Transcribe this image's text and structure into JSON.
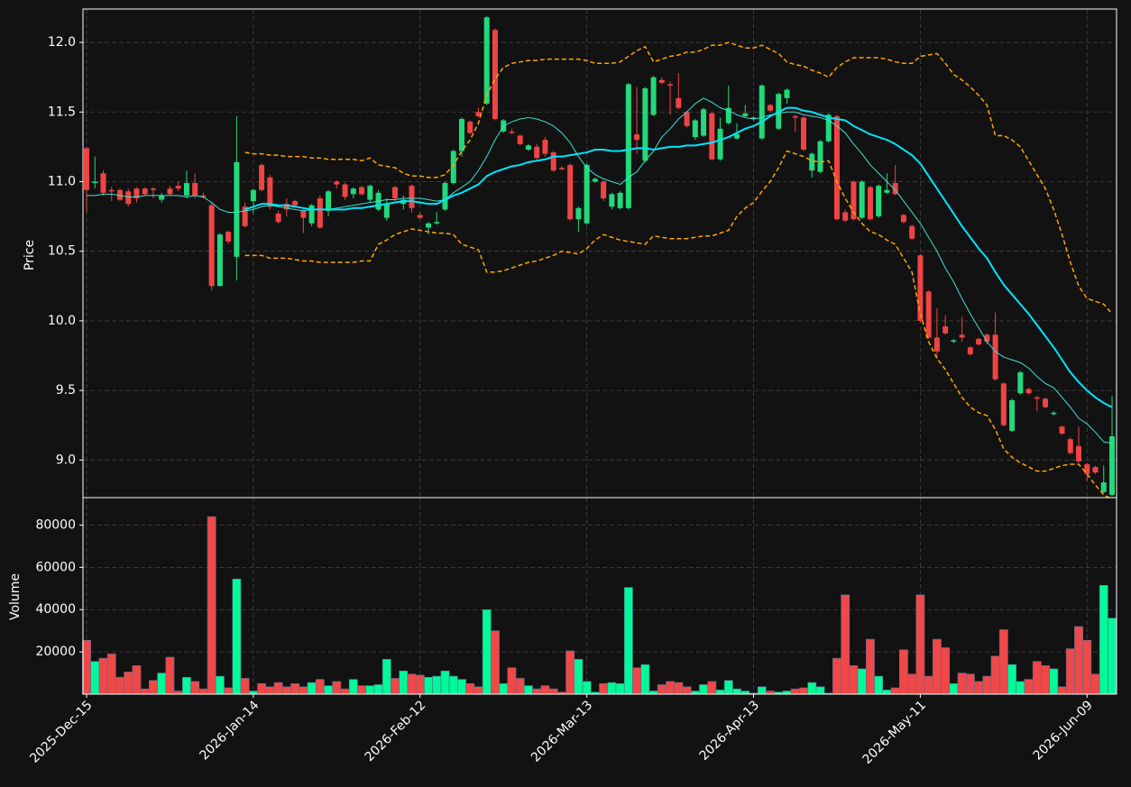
{
  "chart_data": {
    "type": "candlestick",
    "price_label": "Price",
    "volume_label": "Volume",
    "categories": [
      "2025-Dec-15",
      null,
      null,
      null,
      null,
      null,
      null,
      null,
      null,
      null,
      null,
      null,
      null,
      null,
      null,
      null,
      null,
      null,
      null,
      null,
      "2026-Jan-14",
      null,
      null,
      null,
      null,
      null,
      null,
      null,
      null,
      null,
      null,
      null,
      null,
      null,
      null,
      null,
      null,
      null,
      null,
      null,
      "2026-Feb-12",
      null,
      null,
      null,
      null,
      null,
      null,
      null,
      null,
      null,
      null,
      null,
      null,
      null,
      null,
      null,
      null,
      null,
      null,
      null,
      "2026-Mar-13",
      null,
      null,
      null,
      null,
      null,
      null,
      null,
      null,
      null,
      null,
      null,
      null,
      null,
      null,
      null,
      null,
      null,
      null,
      null,
      "2026-Apr-13",
      null,
      null,
      null,
      null,
      null,
      null,
      null,
      null,
      null,
      null,
      null,
      null,
      null,
      null,
      null,
      null,
      null,
      null,
      null,
      "2026-May-11",
      null,
      null,
      null,
      null,
      null,
      null,
      null,
      null,
      null,
      null,
      null,
      null,
      null,
      null,
      null,
      null,
      null,
      null,
      null,
      "2026-Jun-09",
      null,
      null,
      null
    ],
    "open": [
      11.24,
      10.99,
      11.06,
      10.94,
      10.94,
      10.93,
      10.95,
      10.95,
      10.95,
      10.87,
      10.95,
      10.97,
      10.9,
      10.99,
      10.9,
      10.83,
      10.25,
      10.64,
      10.46,
      10.82,
      10.86,
      11.12,
      11.03,
      10.77,
      10.84,
      10.86,
      10.79,
      10.7,
      10.88,
      10.79,
      11.0,
      10.98,
      10.91,
      10.96,
      10.87,
      10.8,
      10.74,
      10.96,
      10.84,
      10.97,
      10.76,
      10.67,
      10.7,
      10.8,
      10.99,
      11.22,
      11.43,
      11.5,
      11.56,
      12.09,
      11.36,
      11.36,
      11.33,
      11.23,
      11.25,
      11.3,
      11.21,
      11.1,
      11.12,
      10.73,
      10.7,
      11.0,
      11.0,
      10.82,
      10.81,
      10.81,
      11.34,
      11.15,
      11.48,
      11.73,
      11.7,
      11.6,
      11.5,
      11.32,
      11.33,
      11.49,
      11.16,
      11.42,
      11.31,
      11.47,
      11.45,
      11.31,
      11.55,
      11.38,
      11.6,
      11.47,
      11.46,
      11.08,
      11.07,
      11.29,
      11.47,
      10.78,
      11.0,
      10.74,
      10.96,
      10.75,
      10.92,
      10.99,
      10.76,
      10.68,
      10.47,
      10.21,
      9.88,
      9.96,
      9.85,
      9.9,
      9.81,
      9.87,
      9.9,
      9.9,
      9.55,
      9.21,
      9.48,
      9.51,
      9.45,
      9.44,
      9.33,
      9.24,
      9.15,
      9.1,
      8.97,
      8.95,
      8.77,
      8.75
    ],
    "high": [
      11.25,
      11.18,
      11.08,
      10.96,
      10.95,
      10.95,
      10.96,
      10.96,
      10.96,
      10.92,
      10.97,
      11.0,
      11.08,
      11.06,
      10.92,
      10.85,
      10.63,
      10.65,
      11.47,
      10.85,
      10.95,
      11.13,
      11.05,
      10.79,
      10.88,
      10.87,
      10.8,
      10.84,
      10.9,
      10.94,
      11.01,
      10.99,
      10.96,
      10.97,
      10.98,
      10.94,
      10.88,
      10.97,
      10.9,
      10.98,
      10.78,
      10.71,
      10.78,
      11.0,
      11.23,
      11.46,
      11.44,
      11.53,
      12.19,
      12.1,
      11.45,
      11.38,
      11.34,
      11.27,
      11.27,
      11.32,
      11.22,
      11.11,
      11.13,
      10.82,
      11.13,
      11.03,
      11.01,
      10.92,
      10.93,
      11.71,
      11.68,
      11.68,
      11.76,
      11.75,
      11.72,
      11.78,
      11.51,
      11.45,
      11.53,
      11.5,
      11.46,
      11.69,
      11.42,
      11.55,
      11.47,
      11.7,
      11.56,
      11.64,
      11.67,
      11.48,
      11.47,
      11.21,
      11.3,
      11.49,
      11.48,
      10.8,
      11.01,
      11.01,
      10.97,
      10.98,
      11.06,
      11.12,
      10.77,
      10.69,
      10.48,
      10.22,
      10.09,
      10.04,
      9.87,
      10.03,
      9.82,
      9.88,
      9.91,
      10.06,
      9.56,
      9.44,
      9.64,
      9.52,
      9.46,
      9.45,
      9.35,
      9.25,
      9.16,
      9.24,
      8.98,
      8.96,
      8.96,
      9.46
    ],
    "low": [
      10.78,
      10.95,
      10.9,
      10.86,
      10.86,
      10.82,
      10.85,
      10.9,
      10.88,
      10.85,
      10.9,
      10.93,
      10.88,
      10.88,
      10.88,
      10.22,
      10.25,
      10.55,
      10.29,
      10.67,
      10.77,
      10.93,
      10.8,
      10.7,
      10.75,
      10.82,
      10.63,
      10.68,
      10.66,
      10.75,
      10.95,
      10.87,
      10.88,
      10.9,
      10.85,
      10.79,
      10.72,
      10.86,
      10.8,
      10.78,
      10.73,
      10.62,
      10.69,
      10.79,
      10.98,
      11.18,
      11.34,
      11.46,
      11.55,
      11.44,
      11.35,
      11.34,
      11.26,
      11.22,
      11.16,
      11.18,
      11.07,
      11.08,
      10.72,
      10.64,
      10.69,
      10.99,
      10.86,
      10.8,
      10.8,
      10.8,
      11.2,
      11.14,
      11.47,
      11.7,
      11.48,
      11.52,
      11.39,
      11.3,
      11.32,
      11.15,
      11.15,
      11.41,
      11.3,
      11.46,
      11.44,
      11.3,
      11.5,
      11.37,
      11.56,
      11.36,
      11.22,
      11.03,
      11.06,
      11.28,
      10.72,
      10.71,
      10.72,
      10.73,
      10.72,
      10.74,
      10.91,
      10.9,
      10.7,
      10.58,
      9.99,
      9.87,
      9.73,
      9.9,
      9.84,
      9.85,
      9.75,
      9.82,
      9.83,
      9.57,
      9.24,
      9.2,
      9.47,
      9.47,
      9.35,
      9.37,
      9.32,
      9.18,
      9.04,
      8.98,
      8.85,
      8.9,
      8.76,
      8.74
    ],
    "close": [
      10.94,
      11.0,
      10.92,
      10.93,
      10.87,
      10.84,
      10.88,
      10.91,
      10.94,
      10.9,
      10.91,
      10.95,
      10.99,
      10.9,
      10.89,
      10.25,
      10.62,
      10.57,
      11.14,
      10.68,
      10.94,
      10.94,
      10.82,
      10.71,
      10.8,
      10.83,
      10.74,
      10.83,
      10.67,
      10.93,
      10.98,
      10.89,
      10.95,
      10.91,
      10.97,
      10.92,
      10.84,
      10.88,
      10.87,
      10.81,
      10.74,
      10.7,
      10.71,
      10.99,
      11.22,
      11.45,
      11.35,
      11.47,
      12.18,
      11.45,
      11.44,
      11.35,
      11.27,
      11.26,
      11.17,
      11.2,
      11.08,
      11.09,
      10.73,
      10.81,
      11.12,
      11.02,
      10.88,
      10.91,
      10.92,
      11.7,
      11.3,
      11.67,
      11.75,
      11.71,
      11.69,
      11.53,
      11.4,
      11.44,
      11.52,
      11.16,
      11.38,
      11.53,
      11.34,
      11.49,
      11.46,
      11.69,
      11.51,
      11.63,
      11.66,
      11.46,
      11.23,
      11.2,
      11.29,
      11.48,
      10.73,
      10.72,
      10.73,
      11.0,
      10.73,
      10.97,
      10.94,
      10.91,
      10.71,
      10.59,
      10.0,
      9.88,
      9.78,
      9.91,
      9.86,
      9.88,
      9.76,
      9.83,
      9.85,
      9.58,
      9.25,
      9.43,
      9.63,
      9.48,
      9.44,
      9.38,
      9.34,
      9.19,
      9.05,
      8.99,
      8.9,
      8.91,
      8.84,
      9.17
    ],
    "volume": [
      25500,
      15500,
      17000,
      19000,
      8000,
      10500,
      13500,
      2500,
      6500,
      10000,
      17500,
      1500,
      8000,
      6000,
      2500,
      84000,
      8500,
      3000,
      54500,
      7500,
      1500,
      5000,
      3500,
      5500,
      3500,
      5000,
      3500,
      5500,
      7000,
      4000,
      6000,
      2500,
      7000,
      4000,
      4000,
      4500,
      16500,
      7500,
      11000,
      9500,
      9000,
      8000,
      8500,
      11000,
      8500,
      7000,
      5000,
      3500,
      40000,
      30000,
      5000,
      12500,
      7500,
      4000,
      2500,
      4000,
      2500,
      1000,
      20500,
      16500,
      6000,
      1000,
      5000,
      5500,
      5000,
      50500,
      12500,
      14000,
      1500,
      4500,
      6000,
      5500,
      3500,
      1500,
      4500,
      6000,
      2000,
      6500,
      2500,
      1500,
      500,
      3500,
      1500,
      1000,
      1500,
      2500,
      3000,
      5500,
      3500,
      500,
      17000,
      47000,
      13500,
      12000,
      26000,
      8500,
      2000,
      3000,
      21000,
      9500,
      47000,
      8500,
      26000,
      22000,
      5000,
      10000,
      9500,
      6000,
      8500,
      18000,
      30500,
      14000,
      6000,
      7000,
      15500,
      13500,
      12000,
      3500,
      21500,
      32000,
      25500,
      9500,
      51500,
      36000
    ],
    "up_color": "#22d97c",
    "down_color": "#ef4444",
    "volume_up_color": "#00fa9a",
    "volume_down_color": "#f04848",
    "lines": [
      {
        "color": "#40e0d0",
        "linewidth": 1,
        "dashed": false,
        "values": [
          10.9,
          10.9,
          10.91,
          10.91,
          10.9,
          10.89,
          10.89,
          10.9,
          10.9,
          10.9,
          10.9,
          10.9,
          10.89,
          10.9,
          10.89,
          10.85,
          10.8,
          10.78,
          10.78,
          10.79,
          10.8,
          10.82,
          10.83,
          10.82,
          10.81,
          10.8,
          10.79,
          10.8,
          10.8,
          10.8,
          10.81,
          10.82,
          10.83,
          10.84,
          10.85,
          10.86,
          10.87,
          10.87,
          10.88,
          10.88,
          10.88,
          10.87,
          10.86,
          10.87,
          10.92,
          10.96,
          11.0,
          11.08,
          11.18,
          11.3,
          11.4,
          11.43,
          11.45,
          11.46,
          11.45,
          11.43,
          11.4,
          11.35,
          11.28,
          11.18,
          11.1,
          11.05,
          11.02,
          11.0,
          10.98,
          11.03,
          11.07,
          11.15,
          11.22,
          11.32,
          11.38,
          11.45,
          11.5,
          11.56,
          11.6,
          11.57,
          11.53,
          11.51,
          11.48,
          11.46,
          11.45,
          11.46,
          11.48,
          11.49,
          11.5,
          11.5,
          11.48,
          11.47,
          11.46,
          11.44,
          11.4,
          11.35,
          11.27,
          11.2,
          11.12,
          11.06,
          11.0,
          10.94,
          10.86,
          10.78,
          10.7,
          10.6,
          10.5,
          10.38,
          10.28,
          10.16,
          10.05,
          9.95,
          9.85,
          9.78,
          9.74,
          9.72,
          9.7,
          9.66,
          9.6,
          9.55,
          9.52,
          9.45,
          9.38,
          9.3,
          9.26,
          9.2,
          9.13,
          9.12
        ]
      },
      {
        "color": "#00e5ff",
        "linewidth": 2,
        "dashed": false,
        "values": [
          null,
          null,
          null,
          null,
          null,
          null,
          null,
          null,
          null,
          null,
          null,
          null,
          null,
          null,
          null,
          null,
          null,
          null,
          null,
          10.8,
          10.82,
          10.84,
          10.84,
          10.83,
          10.83,
          10.82,
          10.81,
          10.8,
          10.8,
          10.8,
          10.8,
          10.8,
          10.81,
          10.81,
          10.82,
          10.83,
          10.84,
          10.85,
          10.86,
          10.86,
          10.85,
          10.84,
          10.84,
          10.87,
          10.9,
          10.92,
          10.95,
          10.98,
          11.04,
          11.07,
          11.09,
          11.11,
          11.12,
          11.14,
          11.15,
          11.16,
          11.18,
          11.18,
          11.19,
          11.2,
          11.21,
          11.23,
          11.23,
          11.22,
          11.22,
          11.23,
          11.24,
          11.24,
          11.23,
          11.24,
          11.25,
          11.25,
          11.26,
          11.26,
          11.27,
          11.28,
          11.3,
          11.32,
          11.35,
          11.38,
          11.4,
          11.43,
          11.47,
          11.5,
          11.53,
          11.53,
          11.51,
          11.5,
          11.48,
          11.46,
          11.45,
          11.44,
          11.4,
          11.37,
          11.34,
          11.32,
          11.3,
          11.27,
          11.23,
          11.19,
          11.13,
          11.04,
          10.95,
          10.86,
          10.77,
          10.68,
          10.6,
          10.52,
          10.45,
          10.35,
          10.26,
          10.19,
          10.12,
          10.05,
          9.97,
          9.89,
          9.81,
          9.72,
          9.63,
          9.56,
          9.5,
          9.45,
          9.41,
          9.38
        ]
      },
      {
        "color": "#ffa500",
        "linewidth": 1.5,
        "dashed": true,
        "values": [
          null,
          null,
          null,
          null,
          null,
          null,
          null,
          null,
          null,
          null,
          null,
          null,
          null,
          null,
          null,
          null,
          null,
          null,
          null,
          11.21,
          11.2,
          11.2,
          11.19,
          11.19,
          11.18,
          11.18,
          11.18,
          11.17,
          11.17,
          11.16,
          11.16,
          11.16,
          11.16,
          11.15,
          11.17,
          11.12,
          11.11,
          11.1,
          11.06,
          11.04,
          11.04,
          11.03,
          11.03,
          11.05,
          11.12,
          11.22,
          11.3,
          11.42,
          11.62,
          11.74,
          11.82,
          11.85,
          11.86,
          11.87,
          11.87,
          11.88,
          11.88,
          11.88,
          11.88,
          11.88,
          11.87,
          11.85,
          11.85,
          11.85,
          11.86,
          11.9,
          11.94,
          11.97,
          11.86,
          11.88,
          11.9,
          11.91,
          11.93,
          11.93,
          11.95,
          11.98,
          11.98,
          12.0,
          11.98,
          11.96,
          11.96,
          11.98,
          11.95,
          11.92,
          11.86,
          11.84,
          11.83,
          11.8,
          11.78,
          11.75,
          11.82,
          11.86,
          11.89,
          11.89,
          11.89,
          11.89,
          11.88,
          11.86,
          11.85,
          11.85,
          11.9,
          11.91,
          11.92,
          11.85,
          11.77,
          11.73,
          11.68,
          11.62,
          11.55,
          11.33,
          11.33,
          11.3,
          11.25,
          11.15,
          11.05,
          10.95,
          10.8,
          10.62,
          10.42,
          10.25,
          10.16,
          10.14,
          10.12,
          10.05
        ]
      },
      {
        "color": "#ffa500",
        "linewidth": 1.5,
        "dashed": true,
        "values": [
          null,
          null,
          null,
          null,
          null,
          null,
          null,
          null,
          null,
          null,
          null,
          null,
          null,
          null,
          null,
          null,
          null,
          null,
          null,
          10.47,
          10.47,
          10.47,
          10.45,
          10.45,
          10.45,
          10.44,
          10.43,
          10.43,
          10.42,
          10.42,
          10.42,
          10.42,
          10.42,
          10.43,
          10.43,
          10.55,
          10.58,
          10.62,
          10.64,
          10.66,
          10.65,
          10.64,
          10.63,
          10.63,
          10.62,
          10.55,
          10.53,
          10.51,
          10.35,
          10.35,
          10.36,
          10.38,
          10.4,
          10.42,
          10.43,
          10.45,
          10.47,
          10.5,
          10.49,
          10.48,
          10.52,
          10.58,
          10.62,
          10.6,
          10.58,
          10.57,
          10.56,
          10.55,
          10.61,
          10.6,
          10.59,
          10.59,
          10.59,
          10.6,
          10.61,
          10.61,
          10.63,
          10.65,
          10.75,
          10.81,
          10.85,
          10.93,
          11.0,
          11.1,
          11.22,
          11.2,
          11.18,
          11.15,
          11.14,
          11.15,
          11.0,
          10.88,
          10.78,
          10.7,
          10.64,
          10.62,
          10.58,
          10.55,
          10.45,
          10.35,
          10.05,
          9.85,
          9.73,
          9.65,
          9.55,
          9.45,
          9.38,
          9.34,
          9.32,
          9.22,
          9.08,
          9.02,
          8.98,
          8.95,
          8.92,
          8.92,
          8.94,
          8.96,
          8.97,
          8.97,
          8.9,
          8.82,
          8.75,
          8.72
        ]
      }
    ],
    "grid": true,
    "ylim": [
      8.73,
      12.24
    ],
    "yticks": [
      {
        "value": 9,
        "label": "9.0"
      },
      9.5,
      {
        "value": 10,
        "label": "10.0"
      },
      10.5,
      {
        "value": 11,
        "label": "11.0"
      },
      11.5,
      {
        "value": 12,
        "label": "12.0"
      }
    ],
    "volume_ylim": [
      0,
      93000
    ],
    "volume_yticks": [
      20000,
      40000,
      60000,
      80000
    ]
  }
}
